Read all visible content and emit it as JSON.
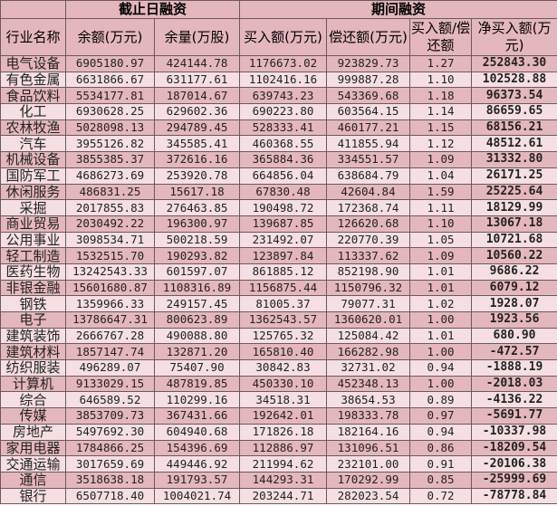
{
  "header": {
    "group1": "截止日融资",
    "group2": "期间融资",
    "columns": [
      "行业名称",
      "余额(万元)",
      "余量(万股)",
      "买入额(万元)",
      "偿还额(万元)",
      "买入额/偿还额",
      "净买入额(万元)"
    ]
  },
  "colors": {
    "dark_row": "#e4b7bc",
    "light_row": "#f5dfe2",
    "border": "#6b5a5c"
  },
  "rows": [
    [
      "电气设备",
      "6905180.97",
      "424144.78",
      "1176673.02",
      "923829.73",
      "1.27",
      "252843.30"
    ],
    [
      "有色金属",
      "6631866.67",
      "631177.61",
      "1102416.16",
      "999887.28",
      "1.10",
      "102528.88"
    ],
    [
      "食品饮料",
      "5534177.81",
      "187014.67",
      "639743.23",
      "543369.68",
      "1.18",
      "96373.54"
    ],
    [
      "化工",
      "6930628.25",
      "629602.36",
      "690223.80",
      "603564.15",
      "1.14",
      "86659.65"
    ],
    [
      "农林牧渔",
      "5028098.13",
      "294789.45",
      "528333.41",
      "460177.21",
      "1.15",
      "68156.21"
    ],
    [
      "汽车",
      "3955126.82",
      "345585.41",
      "460368.55",
      "411855.94",
      "1.12",
      "48512.61"
    ],
    [
      "机械设备",
      "3855385.37",
      "372616.16",
      "365884.36",
      "334551.57",
      "1.09",
      "31332.80"
    ],
    [
      "国防军工",
      "4686273.69",
      "253920.78",
      "664856.04",
      "638684.79",
      "1.04",
      "26171.25"
    ],
    [
      "休闲服务",
      "486831.25",
      "15617.18",
      "67830.48",
      "42604.84",
      "1.59",
      "25225.64"
    ],
    [
      "采掘",
      "2017855.83",
      "276463.85",
      "190498.72",
      "172368.74",
      "1.11",
      "18129.99"
    ],
    [
      "商业贸易",
      "2030492.22",
      "196300.97",
      "139687.85",
      "126620.68",
      "1.10",
      "13067.18"
    ],
    [
      "公用事业",
      "3098534.71",
      "500218.59",
      "231492.07",
      "220770.39",
      "1.05",
      "10721.68"
    ],
    [
      "轻工制造",
      "1532515.70",
      "190293.82",
      "123897.84",
      "113337.62",
      "1.09",
      "10560.22"
    ],
    [
      "医药生物",
      "13242543.33",
      "601597.07",
      "861885.12",
      "852198.90",
      "1.01",
      "9686.22"
    ],
    [
      "非银金融",
      "15601680.87",
      "1108316.89",
      "1156875.44",
      "1150796.32",
      "1.01",
      "6079.12"
    ],
    [
      "钢铁",
      "1359966.33",
      "249157.45",
      "81005.37",
      "79077.31",
      "1.02",
      "1928.07"
    ],
    [
      "电子",
      "13786647.31",
      "800623.89",
      "1362543.57",
      "1360620.01",
      "1.00",
      "1923.56"
    ],
    [
      "建筑装饰",
      "2666767.28",
      "490088.80",
      "125765.32",
      "125084.42",
      "1.01",
      "680.90"
    ],
    [
      "建筑材料",
      "1857147.74",
      "132871.20",
      "165810.40",
      "166282.98",
      "1.00",
      "-472.57"
    ],
    [
      "纺织服装",
      "496289.07",
      "75407.90",
      "30842.83",
      "32731.02",
      "0.94",
      "-1888.19"
    ],
    [
      "计算机",
      "9133029.15",
      "487819.85",
      "450330.10",
      "452348.13",
      "1.00",
      "-2018.03"
    ],
    [
      "综合",
      "646589.52",
      "110299.16",
      "34518.31",
      "38654.53",
      "0.89",
      "-4136.22"
    ],
    [
      "传媒",
      "3853709.73",
      "367431.66",
      "192642.01",
      "198333.78",
      "0.97",
      "-5691.77"
    ],
    [
      "房地产",
      "5497692.30",
      "604940.68",
      "171826.18",
      "182164.16",
      "0.94",
      "-10337.98"
    ],
    [
      "家用电器",
      "1784866.25",
      "154396.69",
      "112886.97",
      "131096.51",
      "0.86",
      "-18209.54"
    ],
    [
      "交通运输",
      "3017659.69",
      "449446.92",
      "211994.62",
      "232101.00",
      "0.91",
      "-20106.38"
    ],
    [
      "通信",
      "3518638.18",
      "191793.57",
      "144293.31",
      "170292.99",
      "0.85",
      "-25999.69"
    ],
    [
      "银行",
      "6507718.40",
      "1004021.74",
      "203244.71",
      "282023.54",
      "0.72",
      "-78778.84"
    ]
  ]
}
